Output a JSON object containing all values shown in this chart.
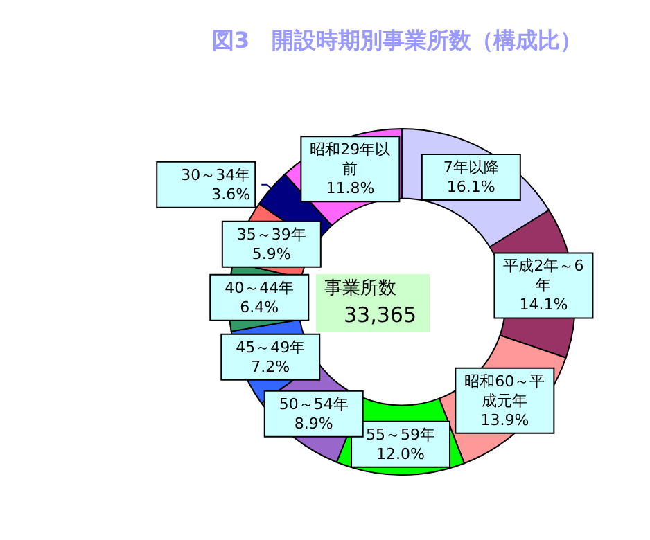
{
  "chart_data": {
    "type": "donut",
    "title": "図3　開設時期別事業所数（構成比）",
    "categories": [
      "7年以降",
      "平成2年～6年",
      "昭和60～平成元年",
      "55～59年",
      "50～54年",
      "45～49年",
      "40～44年",
      "35～39年",
      "30～34年",
      "昭和29年以前"
    ],
    "values": [
      16.1,
      14.1,
      13.9,
      12.0,
      8.9,
      7.2,
      6.4,
      5.9,
      3.6,
      11.8
    ],
    "value_labels": [
      "16.1%",
      "14.1%",
      "13.9%",
      "12.0%",
      "8.9%",
      "7.2%",
      "6.4%",
      "5.9%",
      "3.6%",
      "11.8%"
    ],
    "colors": [
      "#ccccff",
      "#993366",
      "#ff9999",
      "#00ff00",
      "#9966cc",
      "#3366ff",
      "#339966",
      "#ff6666",
      "#000080",
      "#ff66ff"
    ],
    "annotations": [
      "事業所数",
      "33,365"
    ],
    "legend": false
  }
}
